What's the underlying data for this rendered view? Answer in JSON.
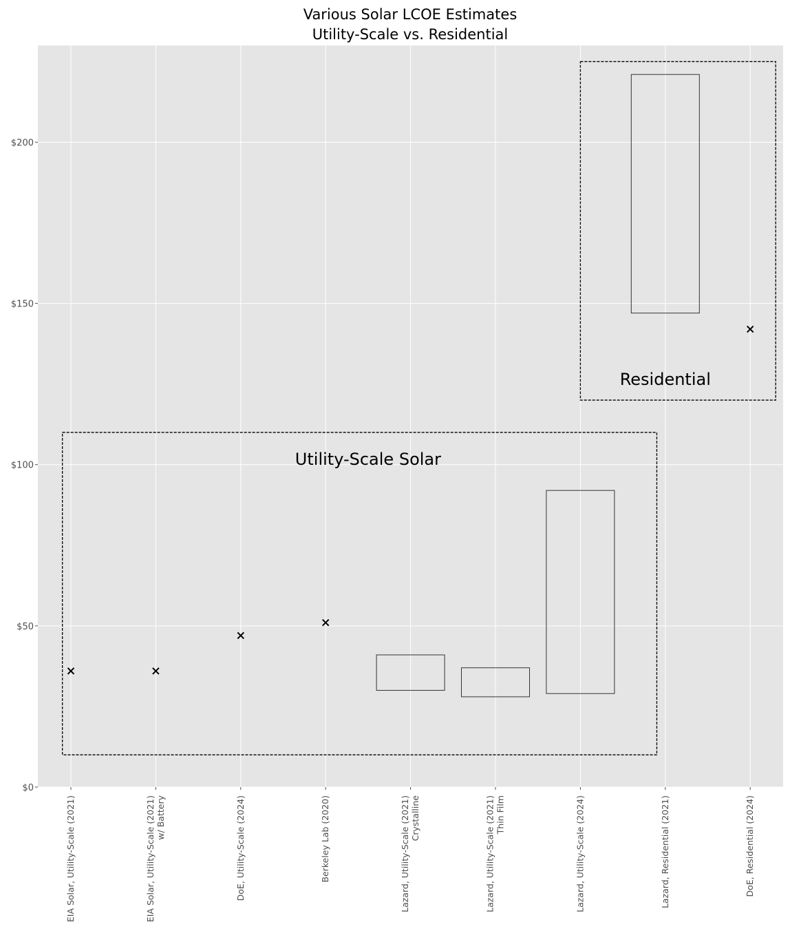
{
  "chart_data": {
    "type": "scatter",
    "title_lines": [
      "Various Solar LCOE Estimates",
      "Utility-Scale vs. Residential"
    ],
    "xlabel": "",
    "ylabel": "",
    "ylim": [
      0,
      230
    ],
    "y_ticks": [
      0,
      50,
      100,
      150,
      200
    ],
    "y_tick_labels": [
      "$0",
      "$50",
      "$100",
      "$150",
      "$200"
    ],
    "grid": true,
    "background": "#e5e5e5",
    "categories": [
      [
        "EIA Solar, Utility-Scale (2021)"
      ],
      [
        "EIA Solar, Utility-Scale (2021)",
        "w/ Battery"
      ],
      [
        "DoE, Utility-Scale (2024)"
      ],
      [
        "Berkeley Lab (2020)"
      ],
      [
        "Lazard, Utility-Scale (2021)",
        "Crystalline"
      ],
      [
        "Lazard, Utility-Scale (2021)",
        "Thin Film"
      ],
      [
        "Lazard, Utility-Scale (2024)"
      ],
      [
        "Lazard, Residential (2021)"
      ],
      [
        "DoE, Residential (2024)"
      ]
    ],
    "points": [
      {
        "x": 0,
        "y": 36
      },
      {
        "x": 1,
        "y": 36
      },
      {
        "x": 2,
        "y": 47
      },
      {
        "x": 3,
        "y": 51
      },
      {
        "x": 8,
        "y": 142
      }
    ],
    "ranges": [
      {
        "x": 4,
        "low": 30,
        "high": 41
      },
      {
        "x": 5,
        "low": 28,
        "high": 37
      },
      {
        "x": 6,
        "low": 29,
        "high": 92
      },
      {
        "x": 7,
        "low": 147,
        "high": 221
      }
    ],
    "regions": [
      {
        "label": "Utility-Scale Solar",
        "x_from": -0.1,
        "x_to": 6.9,
        "y_from": 10,
        "y_to": 110
      },
      {
        "label": "Residential",
        "x_from": 6.0,
        "x_to": 8.3,
        "y_from": 120,
        "y_to": 225
      }
    ]
  }
}
